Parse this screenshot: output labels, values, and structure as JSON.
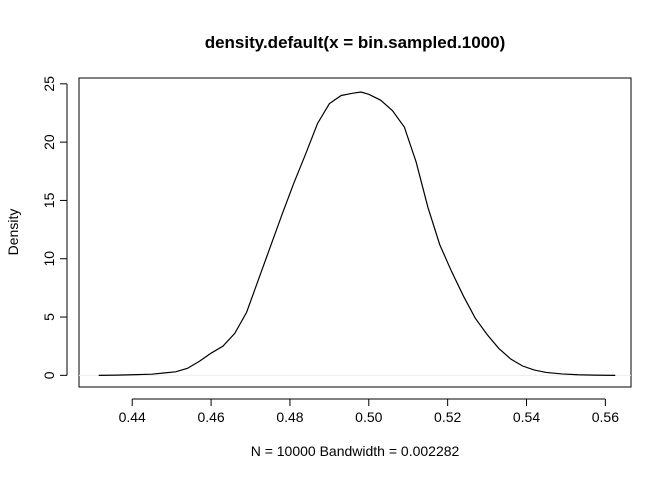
{
  "chart_data": {
    "type": "line",
    "title": "density.default(x = bin.sampled.1000)",
    "xlabel": "N = 10000   Bandwidth = 0.002282",
    "ylabel": "Density",
    "xlim": [
      0.4265,
      0.5665
    ],
    "ylim": [
      -1.0,
      25.5
    ],
    "xticks": [
      "0.44",
      "0.46",
      "0.48",
      "0.50",
      "0.52",
      "0.54",
      "0.56"
    ],
    "yticks": [
      "0",
      "5",
      "10",
      "15",
      "20",
      "25"
    ],
    "zero_line": true,
    "line_color": "#000000",
    "zero_line_color": "#eeeeee",
    "series": [
      {
        "x": [
          0.4315,
          0.436,
          0.44,
          0.445,
          0.448,
          0.451,
          0.454,
          0.457,
          0.46,
          0.463,
          0.466,
          0.469,
          0.472,
          0.475,
          0.478,
          0.481,
          0.484,
          0.487,
          0.49,
          0.493,
          0.496,
          0.498,
          0.5,
          0.503,
          0.506,
          0.509,
          0.512,
          0.515,
          0.518,
          0.521,
          0.524,
          0.527,
          0.53,
          0.533,
          0.536,
          0.539,
          0.542,
          0.545,
          0.549,
          0.553,
          0.557,
          0.5625
        ],
        "values": [
          0.0,
          0.02,
          0.05,
          0.1,
          0.2,
          0.3,
          0.6,
          1.2,
          1.9,
          2.5,
          3.6,
          5.4,
          8.2,
          11.0,
          13.8,
          16.5,
          19.0,
          21.6,
          23.3,
          24.0,
          24.2,
          24.3,
          24.1,
          23.6,
          22.7,
          21.3,
          18.3,
          14.4,
          11.2,
          8.9,
          6.8,
          4.9,
          3.5,
          2.3,
          1.4,
          0.8,
          0.45,
          0.25,
          0.12,
          0.05,
          0.02,
          0.0
        ]
      }
    ]
  }
}
